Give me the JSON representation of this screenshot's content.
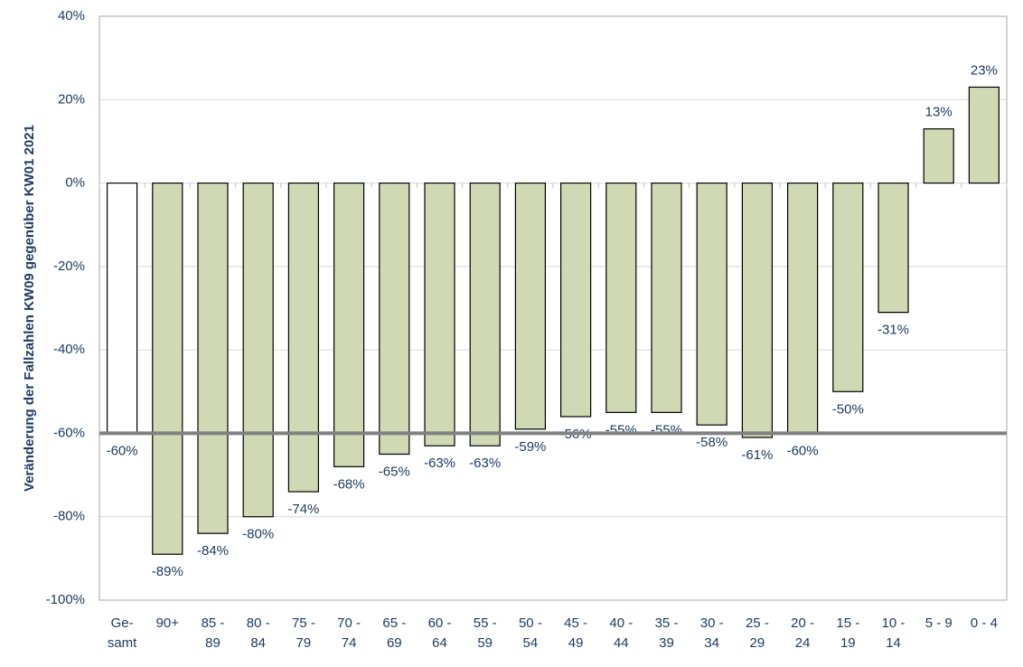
{
  "chart_data": {
    "type": "bar",
    "y_axis_label": "Veränderung der Fallzahlen KW09 gegenüber KW01 2021",
    "categories": [
      "Ge-\nsamt",
      "90+",
      "85 -\n89",
      "80 -\n84",
      "75 -\n79",
      "70 -\n74",
      "65 -\n69",
      "60 -\n64",
      "55 -\n59",
      "50 -\n54",
      "45 -\n49",
      "40 -\n44",
      "35 -\n39",
      "30 -\n34",
      "25 -\n29",
      "20 -\n24",
      "15 -\n19",
      "10 -\n14",
      "5 - 9",
      "0 - 4"
    ],
    "values": [
      -60,
      -89,
      -84,
      -80,
      -74,
      -68,
      -65,
      -63,
      -63,
      -59,
      -56,
      -55,
      -55,
      -58,
      -61,
      -60,
      -50,
      -31,
      13,
      23
    ],
    "value_labels": [
      "-60%",
      "-89%",
      "-84%",
      "-80%",
      "-74%",
      "-68%",
      "-65%",
      "-63%",
      "-63%",
      "-59%",
      "-56%",
      "-55%",
      "-55%",
      "-58%",
      "-61%",
      "-60%",
      "-50%",
      "-31%",
      "13%",
      "23%"
    ],
    "colors": [
      "#ffffff",
      "#d1d9b4",
      "#d1d9b4",
      "#d1d9b4",
      "#d1d9b4",
      "#d1d9b4",
      "#d1d9b4",
      "#d1d9b4",
      "#d1d9b4",
      "#d1d9b4",
      "#d1d9b4",
      "#d1d9b4",
      "#d1d9b4",
      "#d1d9b4",
      "#d1d9b4",
      "#d1d9b4",
      "#d1d9b4",
      "#d1d9b4",
      "#d1d9b4",
      "#d1d9b4"
    ],
    "reference_line": {
      "value": -60,
      "color": "#808080"
    },
    "ylim": [
      -100,
      40
    ],
    "yticks": [
      {
        "value": -100,
        "label": "-100%"
      },
      {
        "value": -80,
        "label": "-80%"
      },
      {
        "value": -60,
        "label": "-60%"
      },
      {
        "value": -40,
        "label": "-40%"
      },
      {
        "value": -20,
        "label": "-20%"
      },
      {
        "value": 0,
        "label": "0%"
      },
      {
        "value": 20,
        "label": "20%"
      },
      {
        "value": 40,
        "label": "40%"
      }
    ],
    "grid": true
  }
}
